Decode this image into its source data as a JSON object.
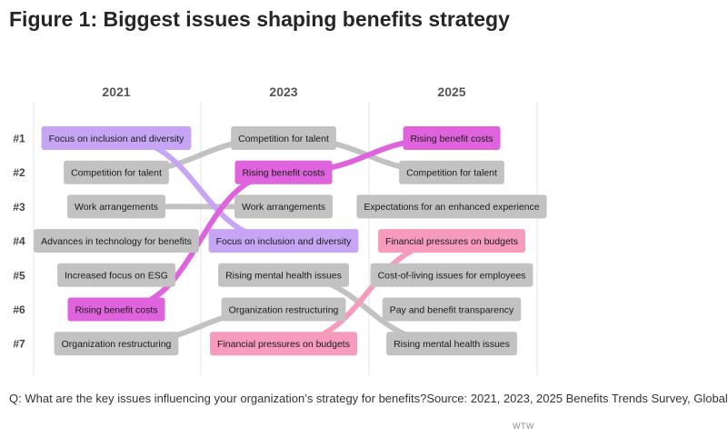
{
  "chart_data": {
    "type": "bump",
    "title": "Figure 1: Biggest issues shaping benefits strategy",
    "years": [
      "2021",
      "2023",
      "2025"
    ],
    "rank_labels": [
      "#1",
      "#2",
      "#3",
      "#4",
      "#5",
      "#6",
      "#7"
    ],
    "columns": [
      [
        "Focus on inclusion and diversity",
        "Competition for talent",
        "Work arrangements",
        "Advances in technology for benefits",
        "Increased focus on ESG",
        "Rising benefit costs",
        "Organization restructuring"
      ],
      [
        "Competition for talent",
        "Rising benefit costs",
        "Work arrangements",
        "Focus on inclusion and diversity",
        "Rising mental health issues",
        "Organization restructuring",
        "Financial pressures on budgets"
      ],
      [
        "Rising benefit costs",
        "Competition for talent",
        "Expectations for an enhanced experience",
        "Financial pressures on budgets",
        "Cost-of-living issues for employees",
        "Pay and benefit transparency",
        "Rising mental health issues"
      ]
    ],
    "highlights": {
      "Focus on inclusion and diversity": "#c6a6f4",
      "Rising benefit costs": "#e063de",
      "Financial pressures on budgets": "#f79bbd"
    },
    "default_color": "#c2c2c2",
    "label_highlight_colors": {
      "Focus on inclusion and diversity": "#c6a6f4",
      "Rising benefit costs": "#e063de",
      "Financial pressures on budgets": "#f79bbd"
    }
  },
  "footnote": "Q: What are the key issues influencing your organization’s strategy for benefits?Source: 2021, 2023, 2025 Benefits Trends Survey, Global",
  "credit": "WTW"
}
